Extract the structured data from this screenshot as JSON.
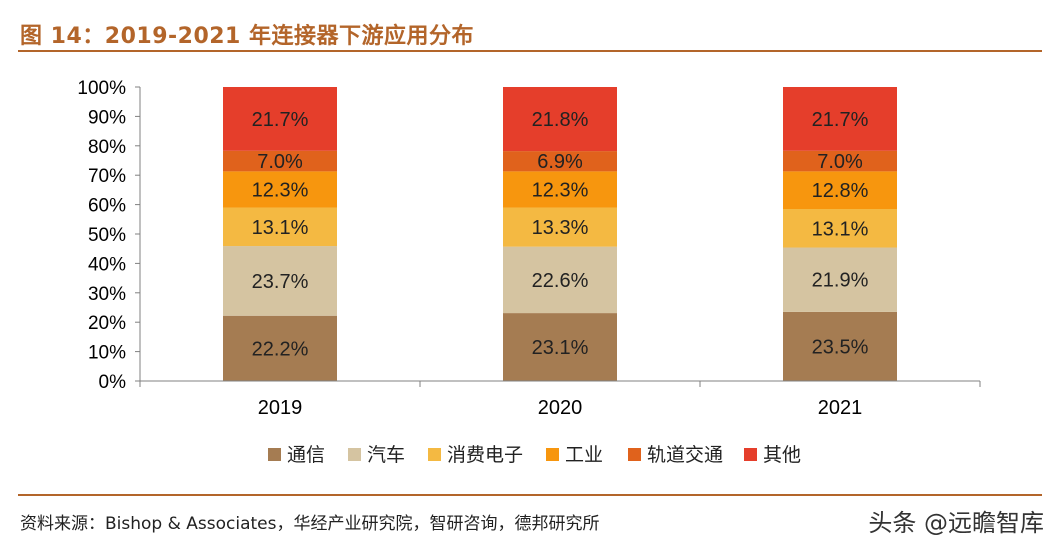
{
  "figure": {
    "title": "图 14：2019-2021 年连接器下游应用分布",
    "source": "资料来源：Bishop & Associates，华经产业研究院，智研咨询，德邦研究所",
    "watermark": "头条 @远瞻智库"
  },
  "chart_data": {
    "type": "bar",
    "stacked": true,
    "categories": [
      "2019",
      "2020",
      "2021"
    ],
    "yticks": [
      "0%",
      "10%",
      "20%",
      "30%",
      "40%",
      "50%",
      "60%",
      "70%",
      "80%",
      "90%",
      "100%"
    ],
    "ylim": [
      0,
      100
    ],
    "legend_position": "bottom",
    "series": [
      {
        "name": "通信",
        "color": "#a57c52",
        "values": [
          22.2,
          23.1,
          23.5
        ],
        "labels": [
          "22.2%",
          "23.1%",
          "23.5%"
        ]
      },
      {
        "name": "汽车",
        "color": "#d5c4a1",
        "values": [
          23.7,
          22.6,
          21.9
        ],
        "labels": [
          "23.7%",
          "22.6%",
          "21.9%"
        ]
      },
      {
        "name": "消费电子",
        "color": "#f4b942",
        "values": [
          13.1,
          13.3,
          13.1
        ],
        "labels": [
          "13.1%",
          "13.3%",
          "13.1%"
        ]
      },
      {
        "name": "工业",
        "color": "#f7960e",
        "values": [
          12.3,
          12.3,
          12.8
        ],
        "labels": [
          "12.3%",
          "12.3%",
          "12.8%"
        ]
      },
      {
        "name": "轨道交通",
        "color": "#e0621c",
        "values": [
          7.0,
          6.9,
          7.0
        ],
        "labels": [
          "7.0%",
          "6.9%",
          "7.0%"
        ]
      },
      {
        "name": "其他",
        "color": "#e53e2b",
        "values": [
          21.7,
          21.8,
          21.7
        ],
        "labels": [
          "21.7%",
          "21.8%",
          "21.7%"
        ]
      }
    ]
  }
}
